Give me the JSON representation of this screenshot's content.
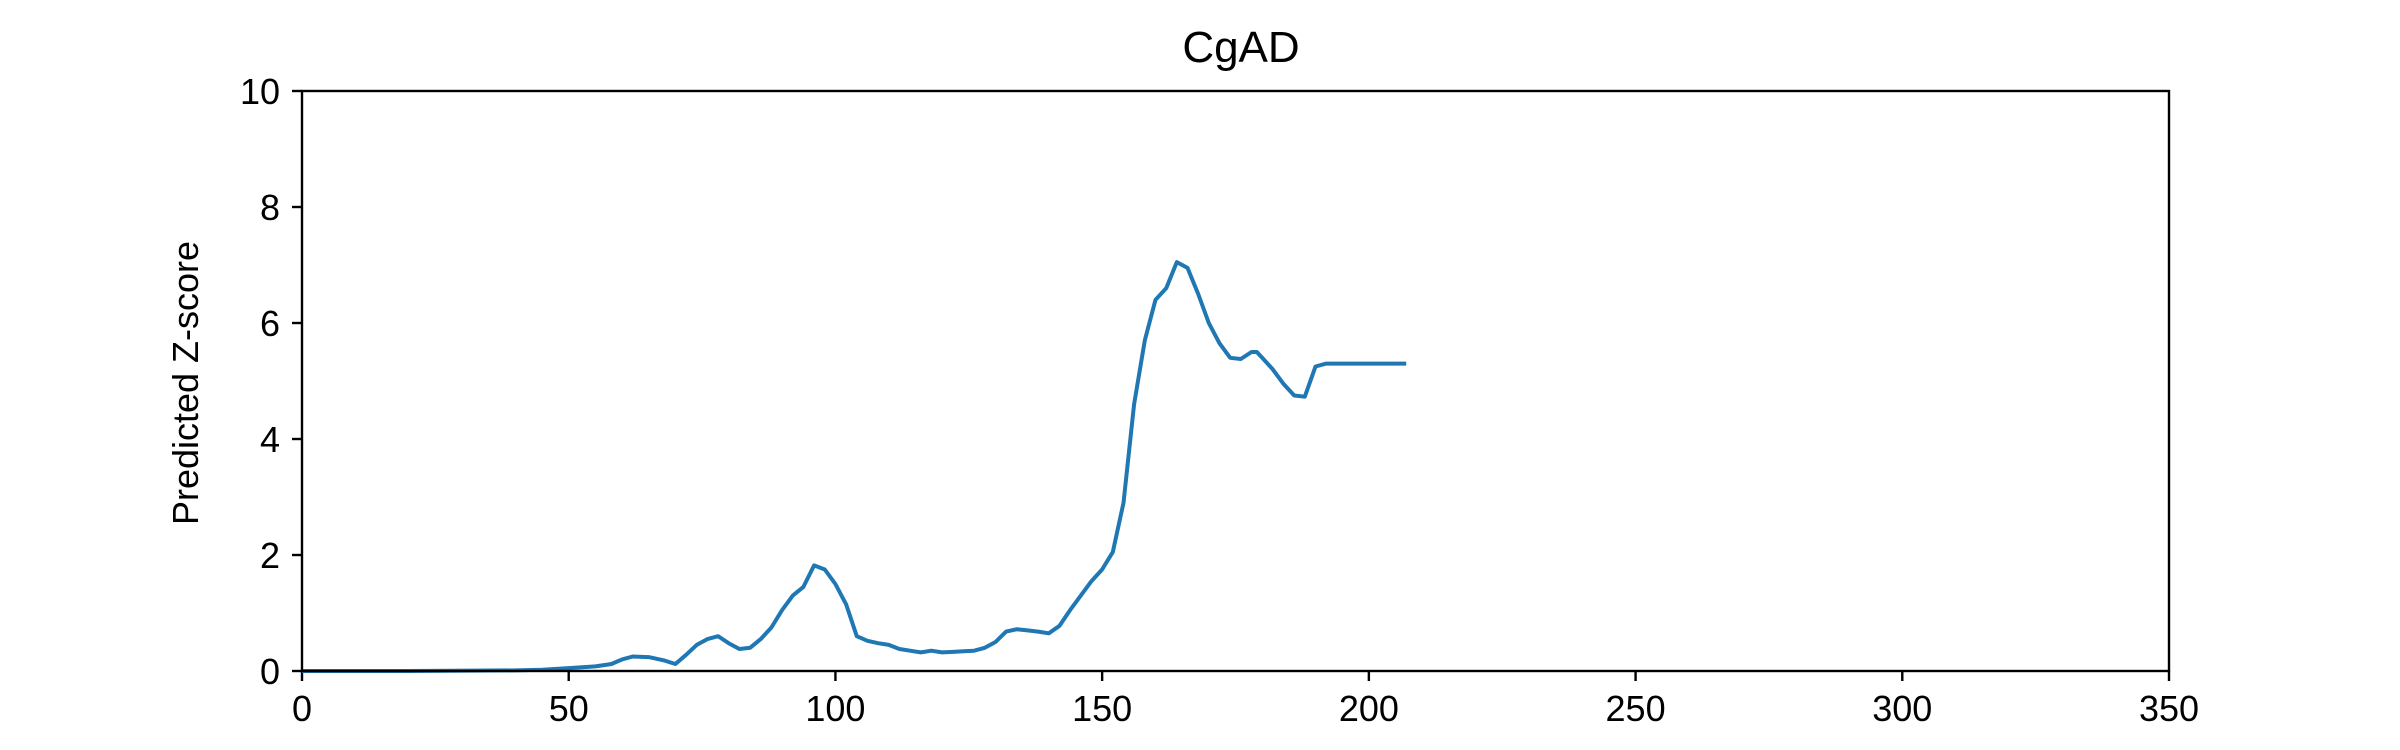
{
  "chart_data": {
    "type": "line",
    "title": "CgAD",
    "xlabel": "",
    "ylabel": "Predicted Z-score",
    "xlim": [
      0,
      350
    ],
    "ylim": [
      0,
      10
    ],
    "xticks": [
      0,
      50,
      100,
      150,
      200,
      250,
      300,
      350
    ],
    "yticks": [
      0,
      2,
      4,
      6,
      8,
      10
    ],
    "grid": false,
    "legend": "none",
    "series": [
      {
        "color": "#1f77b4",
        "x": [
          0,
          20,
          40,
          45,
          50,
          55,
          58,
          60,
          62,
          65,
          68,
          70,
          72,
          74,
          76,
          78,
          80,
          82,
          84,
          86,
          88,
          90,
          92,
          94,
          96,
          98,
          100,
          102,
          104,
          106,
          108,
          110,
          112,
          114,
          116,
          118,
          120,
          122,
          124,
          126,
          128,
          130,
          132,
          134,
          136,
          138,
          140,
          142,
          144,
          146,
          148,
          150,
          152,
          154,
          156,
          158,
          160,
          162,
          164,
          166,
          168,
          170,
          172,
          174,
          176,
          178,
          179,
          180,
          182,
          184,
          186,
          188,
          190,
          192,
          194,
          196,
          198,
          200,
          202,
          204,
          206,
          207
        ],
        "y": [
          0.0,
          0.0,
          0.01,
          0.02,
          0.05,
          0.08,
          0.12,
          0.2,
          0.25,
          0.24,
          0.18,
          0.12,
          0.28,
          0.45,
          0.55,
          0.6,
          0.48,
          0.38,
          0.4,
          0.55,
          0.75,
          1.05,
          1.3,
          1.45,
          1.82,
          1.75,
          1.5,
          1.15,
          0.6,
          0.52,
          0.48,
          0.45,
          0.38,
          0.35,
          0.32,
          0.35,
          0.32,
          0.33,
          0.34,
          0.35,
          0.4,
          0.5,
          0.68,
          0.72,
          0.7,
          0.68,
          0.65,
          0.78,
          1.05,
          1.3,
          1.55,
          1.75,
          2.05,
          2.9,
          4.6,
          5.7,
          6.4,
          6.6,
          7.05,
          6.95,
          6.5,
          6.0,
          5.65,
          5.4,
          5.38,
          5.5,
          5.5,
          5.4,
          5.2,
          4.95,
          4.75,
          4.73,
          5.25,
          5.3,
          5.3,
          5.3,
          5.3,
          5.3,
          5.3,
          5.3,
          5.3,
          5.3
        ]
      }
    ]
  }
}
